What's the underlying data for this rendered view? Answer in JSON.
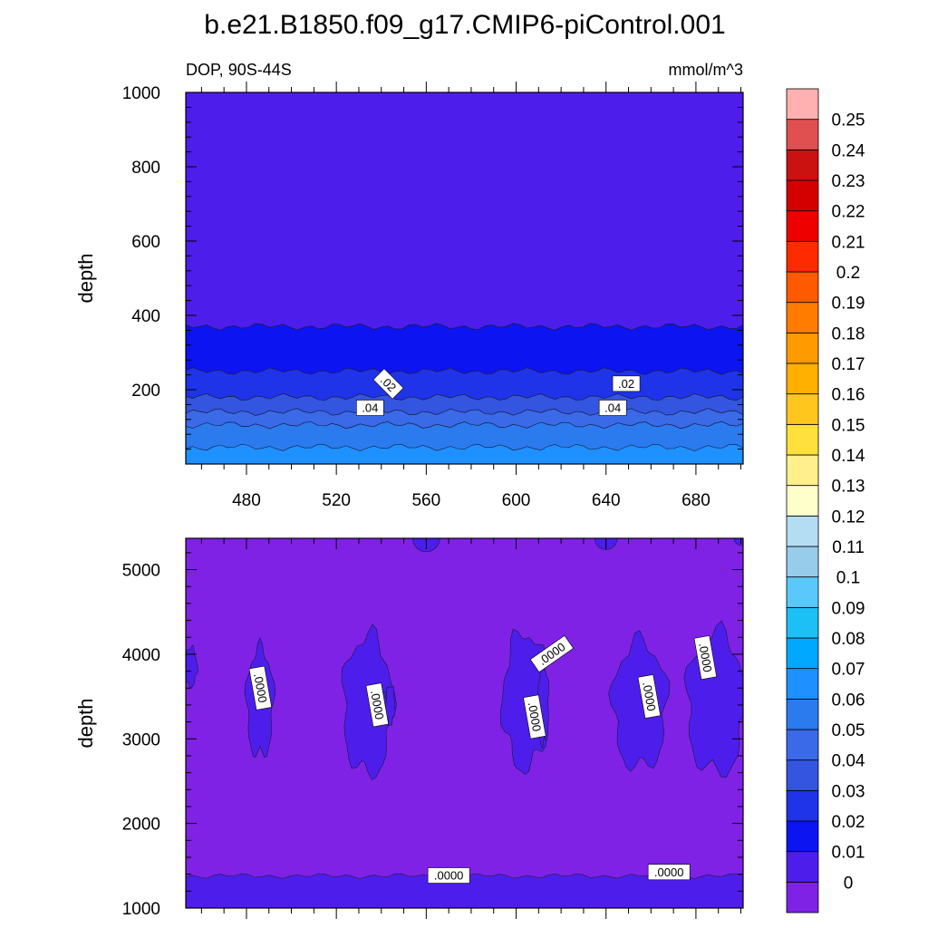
{
  "figure": {
    "title": "b.e21.B1850.f09_g17.CMIP6-piControl.001"
  },
  "chart_data": [
    {
      "type": "heatmap",
      "panel": "upper",
      "subtitle_left": "DOP, 90S-44S",
      "subtitle_right": "mmol/m^3",
      "xlabel": "",
      "ylabel": "depth",
      "xlim": [
        453,
        701
      ],
      "ylim": [
        1000,
        0
      ],
      "xticks": [
        "480",
        "520",
        "560",
        "600",
        "640",
        "680"
      ],
      "yticks": [
        "200",
        "400",
        "600",
        "800",
        "1000"
      ],
      "layers": [
        {
          "value": 0.07,
          "color": "#1E90FF",
          "top": 0,
          "bottom": 45
        },
        {
          "value": 0.06,
          "color": "#2B7BEF",
          "top": 45,
          "bottom": 105
        },
        {
          "value": 0.05,
          "color": "#3A6AE8",
          "top": 105,
          "bottom": 140
        },
        {
          "value": 0.04,
          "color": "#3355E0",
          "top": 140,
          "bottom": 180
        },
        {
          "value": 0.03,
          "color": "#1F33E8",
          "top": 180,
          "bottom": 250
        },
        {
          "value": 0.02,
          "color": "#0D14F2",
          "top": 250,
          "bottom": 370
        },
        {
          "value": 0.0,
          "color": "#4D1EEB",
          "top": 370,
          "bottom": 1000
        }
      ],
      "contour_labels": [
        {
          "text": ".04",
          "x": 535,
          "y": 150
        },
        {
          "text": ".04",
          "x": 643,
          "y": 150
        },
        {
          "text": ".02",
          "x": 543,
          "y": 215
        },
        {
          "text": ".02",
          "x": 649,
          "y": 215
        }
      ]
    },
    {
      "type": "heatmap",
      "panel": "lower",
      "xlabel": "",
      "ylabel": "depth",
      "xlim": [
        453,
        701
      ],
      "ylim": [
        5370,
        1000
      ],
      "yticks": [
        "1000",
        "2000",
        "3000",
        "4000",
        "5000"
      ],
      "layers": [
        {
          "value": 0.0,
          "color": "#4D1EEB",
          "top": 1000,
          "bottom": 1380
        },
        {
          "value": -0.01,
          "color": "#7F22E6",
          "top": 1380,
          "bottom": 5370
        }
      ],
      "contour_labels": [
        {
          "text": ".0000",
          "x": 570,
          "y": 1380
        },
        {
          "text": ".0000",
          "x": 668,
          "y": 1420
        },
        {
          "text": ".0000",
          "x": 486,
          "y": 3600
        },
        {
          "text": ".0000",
          "x": 538,
          "y": 3400
        },
        {
          "text": ".0000",
          "x": 608,
          "y": 3260
        },
        {
          "text": ".0000",
          "x": 616,
          "y": 4000
        },
        {
          "text": ".0000",
          "x": 659,
          "y": 3500
        },
        {
          "text": ".0000",
          "x": 684,
          "y": 3960
        }
      ]
    }
  ],
  "colorbar": {
    "levels": [
      "0",
      "0.01",
      "0.02",
      "0.03",
      "0.04",
      "0.05",
      "0.06",
      "0.07",
      "0.08",
      "0.09",
      "0.1",
      "0.11",
      "0.12",
      "0.13",
      "0.14",
      "0.15",
      "0.16",
      "0.17",
      "0.18",
      "0.19",
      "0.2",
      "0.21",
      "0.22",
      "0.23",
      "0.24",
      "0.25"
    ],
    "colors": [
      "#7F22E6",
      "#4D1EEB",
      "#0D14F2",
      "#1F33E8",
      "#3355E0",
      "#3A6AE8",
      "#2B7BEF",
      "#1E90FF",
      "#00A8FF",
      "#1CC0F5",
      "#5AC8FA",
      "#97CCEB",
      "#B4DCF2",
      "#FFFFCC",
      "#FFF08C",
      "#FFE03C",
      "#FFC71E",
      "#FFB000",
      "#FF9A00",
      "#FF7C00",
      "#FF5A00",
      "#FF2A00",
      "#EE0000",
      "#D40000",
      "#CC1111",
      "#E05050",
      "#FFB0B0"
    ]
  }
}
